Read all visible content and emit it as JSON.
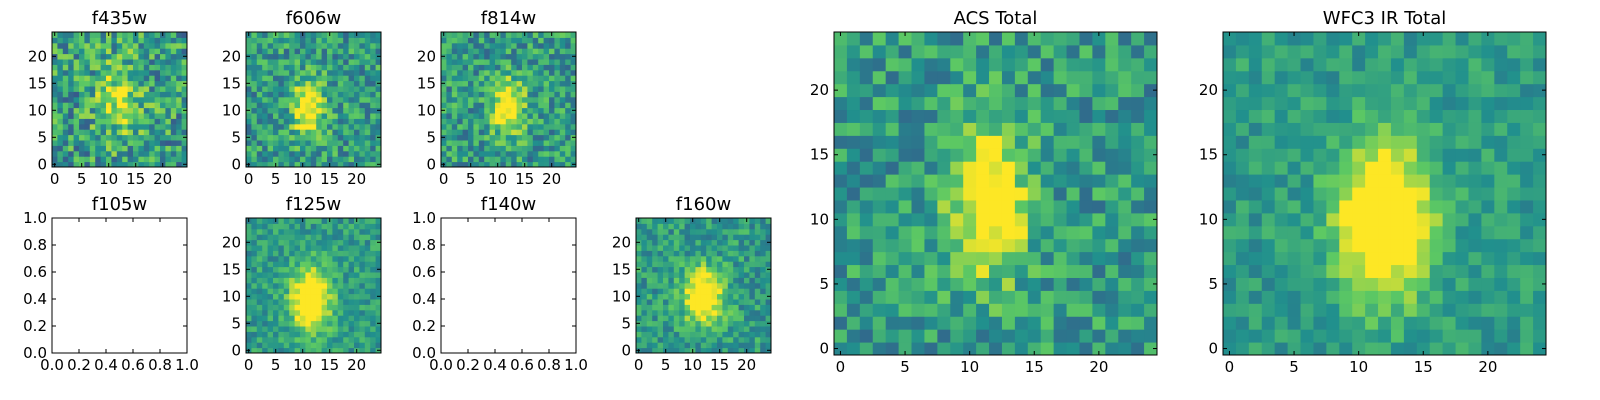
{
  "figure": {
    "colormap": [
      "#440154",
      "#3b528b",
      "#21908d",
      "#5dc963",
      "#fde725"
    ]
  },
  "chart_data": [
    {
      "type": "heatmap",
      "title": "f435w",
      "grid": false,
      "empty": false,
      "xticks": [
        "0",
        "5",
        "10",
        "15",
        "20"
      ],
      "yticks": [
        "0",
        "5",
        "10",
        "15",
        "20"
      ],
      "xlim": [
        0,
        25
      ],
      "ylim": [
        0,
        25
      ],
      "rows": 25,
      "cols": 25,
      "center": [
        12.5,
        13
      ],
      "spread": [
        3,
        5
      ],
      "peak": 0.35,
      "noise": 0.55,
      "seed": 11
    },
    {
      "type": "heatmap",
      "title": "f606w",
      "grid": false,
      "empty": false,
      "xticks": [
        "0",
        "5",
        "10",
        "15",
        "20"
      ],
      "yticks": [
        "0",
        "5",
        "10",
        "15",
        "20"
      ],
      "xlim": [
        0,
        25
      ],
      "ylim": [
        0,
        25
      ],
      "rows": 25,
      "cols": 25,
      "center": [
        11.5,
        11
      ],
      "spread": [
        2,
        3.5
      ],
      "peak": 0.6,
      "noise": 0.45,
      "seed": 23
    },
    {
      "type": "heatmap",
      "title": "f814w",
      "grid": false,
      "empty": false,
      "xticks": [
        "0",
        "5",
        "10",
        "15",
        "20"
      ],
      "yticks": [
        "0",
        "5",
        "10",
        "15",
        "20"
      ],
      "xlim": [
        0,
        25
      ],
      "ylim": [
        0,
        25
      ],
      "rows": 25,
      "cols": 25,
      "center": [
        12.5,
        11
      ],
      "spread": [
        2,
        3.5
      ],
      "peak": 0.6,
      "noise": 0.45,
      "seed": 37
    },
    {
      "type": "heatmap",
      "title": "f105w",
      "grid": false,
      "empty": true,
      "xticks": [
        "0.0",
        "0.2",
        "0.4",
        "0.6",
        "0.8",
        "1.0"
      ],
      "yticks": [
        "0.0",
        "0.2",
        "0.4",
        "0.6",
        "0.8",
        "1.0"
      ],
      "xlim": [
        0,
        1
      ],
      "ylim": [
        0,
        1
      ]
    },
    {
      "type": "heatmap",
      "title": "f125w",
      "grid": false,
      "empty": false,
      "xticks": [
        "0",
        "5",
        "10",
        "15",
        "20"
      ],
      "yticks": [
        "0",
        "5",
        "10",
        "15",
        "20"
      ],
      "xlim": [
        0,
        25
      ],
      "ylim": [
        0,
        25
      ],
      "rows": 25,
      "cols": 25,
      "center": [
        12,
        10
      ],
      "spread": [
        2.5,
        4
      ],
      "peak": 0.75,
      "noise": 0.3,
      "seed": 41
    },
    {
      "type": "heatmap",
      "title": "f140w",
      "grid": false,
      "empty": true,
      "xticks": [
        "0.0",
        "0.2",
        "0.4",
        "0.6",
        "0.8",
        "1.0"
      ],
      "yticks": [
        "0.0",
        "0.2",
        "0.4",
        "0.6",
        "0.8",
        "1.0"
      ],
      "xlim": [
        0,
        1
      ],
      "ylim": [
        0,
        1
      ]
    },
    {
      "type": "heatmap",
      "title": "f160w",
      "grid": false,
      "empty": false,
      "xticks": [
        "0",
        "5",
        "10",
        "15",
        "20"
      ],
      "yticks": [
        "0",
        "5",
        "10",
        "15",
        "20"
      ],
      "xlim": [
        0,
        25
      ],
      "ylim": [
        0,
        25
      ],
      "rows": 25,
      "cols": 25,
      "center": [
        12.5,
        10.5
      ],
      "spread": [
        2.5,
        3.5
      ],
      "peak": 0.7,
      "noise": 0.35,
      "seed": 53
    },
    {
      "type": "heatmap",
      "title": "ACS Total",
      "grid": false,
      "empty": false,
      "xticks": [
        "0",
        "5",
        "10",
        "15",
        "20"
      ],
      "yticks": [
        "0",
        "5",
        "10",
        "15",
        "20"
      ],
      "xlim": [
        0,
        25
      ],
      "ylim": [
        0,
        25
      ],
      "rows": 25,
      "cols": 25,
      "center": [
        12,
        12
      ],
      "spread": [
        2,
        4
      ],
      "peak": 0.65,
      "noise": 0.4,
      "seed": 67
    },
    {
      "type": "heatmap",
      "title": "WFC3 IR Total",
      "grid": false,
      "empty": false,
      "xticks": [
        "0",
        "5",
        "10",
        "15",
        "20"
      ],
      "yticks": [
        "0",
        "5",
        "10",
        "15",
        "20"
      ],
      "xlim": [
        0,
        25
      ],
      "ylim": [
        0,
        25
      ],
      "rows": 25,
      "cols": 25,
      "center": [
        12.5,
        10.5
      ],
      "spread": [
        2.5,
        4
      ],
      "peak": 0.8,
      "noise": 0.25,
      "seed": 79
    }
  ]
}
